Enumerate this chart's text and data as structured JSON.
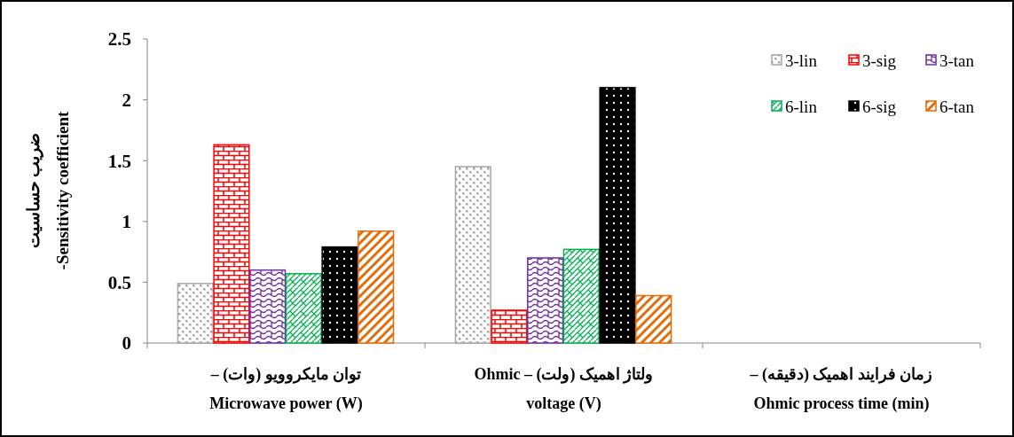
{
  "chart_data": {
    "type": "bar",
    "ylabel": "ضریب حساسیت\n-Sensitivity coefficient",
    "categories": [
      "توان مایکروویو (وات) –\nMicrowave power (W)",
      "ولتاژ اهمیک (ولت) –  Ohmic\nvoltage (V)",
      "زمان فرایند اهمیک (دقیقه) –\nOhmic process time (min)"
    ],
    "series": [
      {
        "name": "3-lin",
        "color": "#a6a6a6",
        "values": [
          0.49,
          1.45,
          null
        ]
      },
      {
        "name": "3-sig",
        "color": "#ff0000",
        "values": [
          1.63,
          0.27,
          null
        ]
      },
      {
        "name": "3-tan",
        "color": "#7030a0",
        "values": [
          0.6,
          0.7,
          null
        ]
      },
      {
        "name": "6-lin",
        "color": "#00b050",
        "values": [
          0.57,
          0.77,
          null
        ]
      },
      {
        "name": "6-sig",
        "color": "#000000",
        "values": [
          0.79,
          2.1,
          null
        ]
      },
      {
        "name": "6-tan",
        "color": "#e36c09",
        "values": [
          0.92,
          0.39,
          null
        ]
      }
    ],
    "ylim": [
      0,
      2.5
    ],
    "yticks": [
      0,
      0.5,
      1,
      1.5,
      2,
      2.5
    ],
    "grid": false,
    "legend": "top right"
  }
}
